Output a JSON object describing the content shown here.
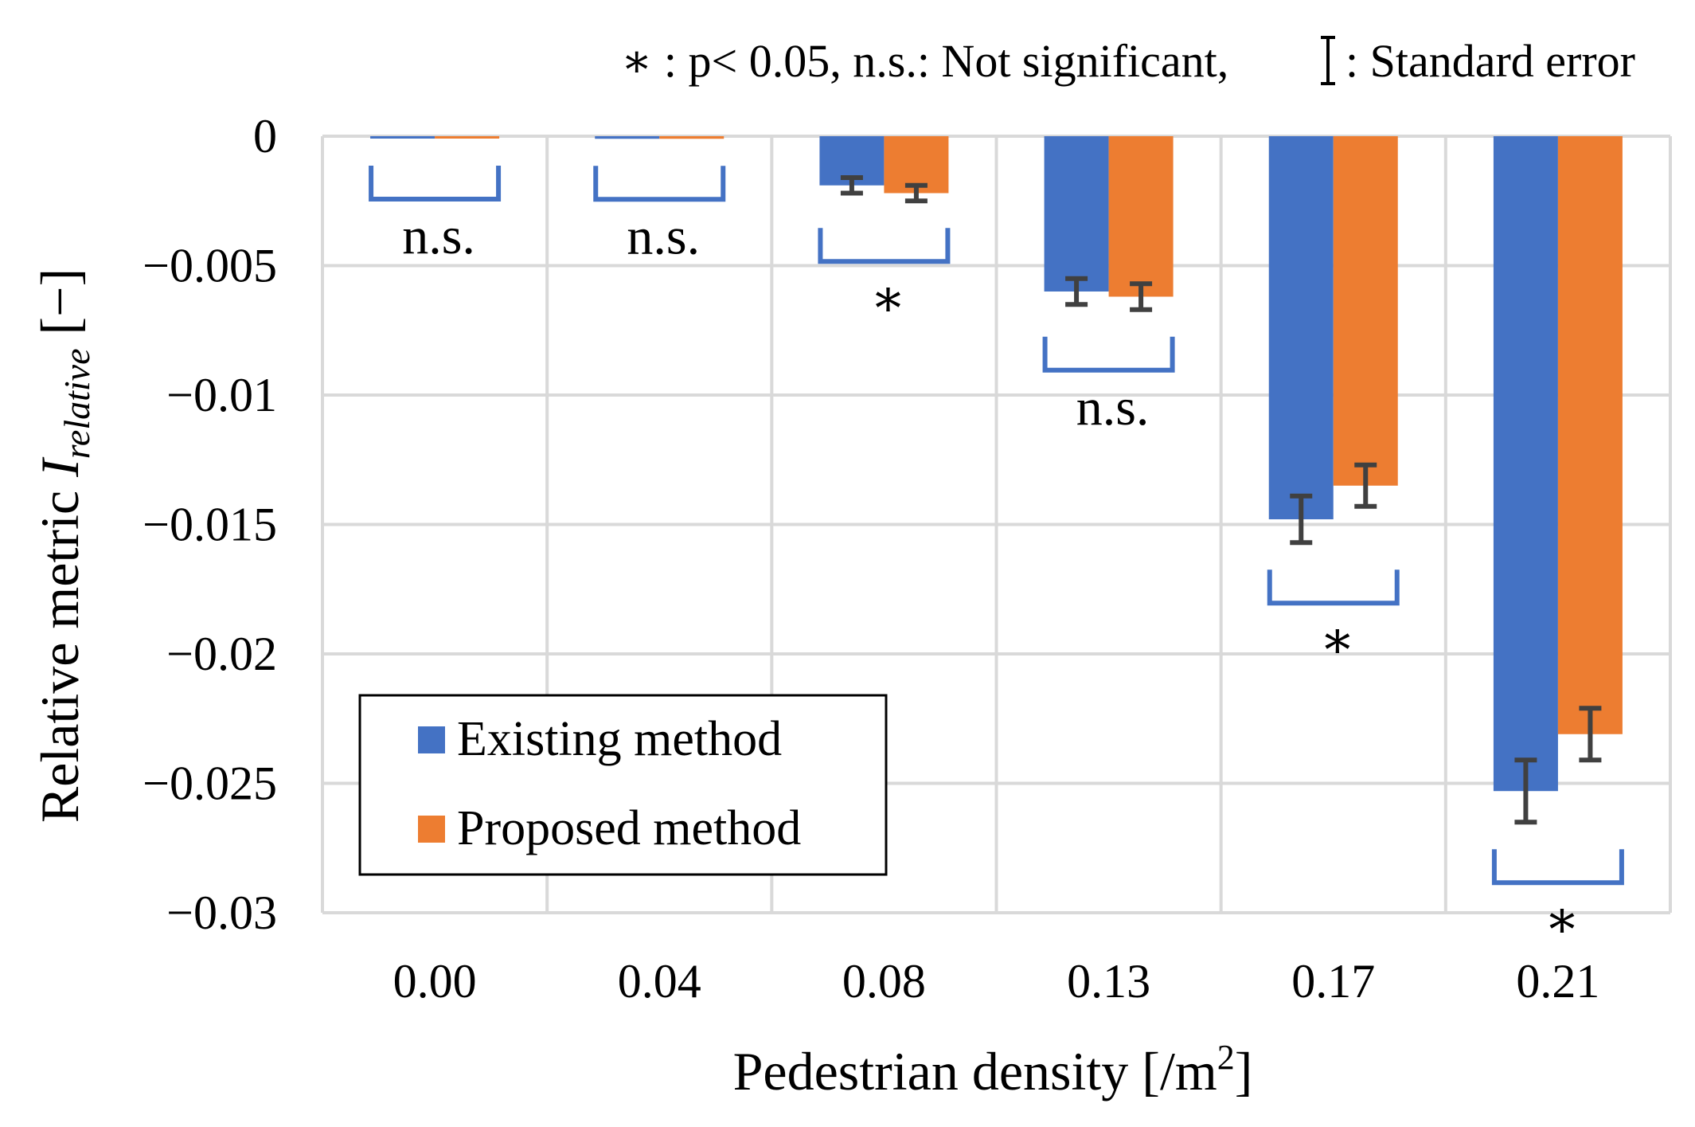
{
  "chart_data": {
    "type": "bar",
    "categories": [
      "0.00",
      "0.04",
      "0.08",
      "0.13",
      "0.17",
      "0.21"
    ],
    "series": [
      {
        "name": "Existing method",
        "color": "#4472C4",
        "values": [
          0.0,
          -0.0001,
          -0.0019,
          -0.006,
          -0.0148,
          -0.0253
        ],
        "errors": [
          0.0,
          0.0,
          0.0003,
          0.0005,
          0.0009,
          0.0012
        ]
      },
      {
        "name": "Proposed method",
        "color": "#ED7D31",
        "values": [
          0.0,
          -0.0001,
          -0.0022,
          -0.0062,
          -0.0135,
          -0.0231
        ],
        "errors": [
          0.0,
          0.0,
          0.0003,
          0.0005,
          0.0008,
          0.001
        ]
      }
    ],
    "significance": [
      "n.s.",
      "n.s.",
      "*",
      "n.s.",
      "*",
      "*"
    ],
    "ylim": [
      -0.03,
      0
    ],
    "yticks": [
      0,
      -0.005,
      -0.01,
      -0.015,
      -0.02,
      -0.025,
      -0.03
    ],
    "ytick_labels": [
      "0",
      "−0.005",
      "−0.01",
      "−0.015",
      "−0.02",
      "−0.025",
      "−0.03"
    ],
    "xlabel": "Pedestrian density [/m",
    "xlabel_sup": "2",
    "xlabel_end": "]",
    "ylabel_prefix": "Relative metric ",
    "ylabel_symbol": "I",
    "ylabel_sub": "relative",
    "ylabel_suffix": " [−]",
    "note": {
      "star": "∗",
      "star_text": " : p< 0.05,  n.s.: Not significant, ",
      "se_text": ": Standard error"
    },
    "grid": true,
    "legend": "bottom-left",
    "colors": {
      "bracket": "#4472C4",
      "errorbar": "#404040",
      "grid": "#D9D9D9"
    }
  }
}
